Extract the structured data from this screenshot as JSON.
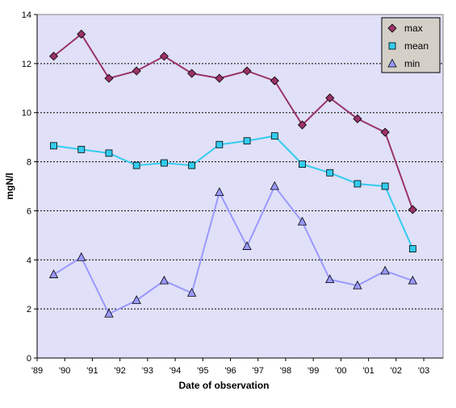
{
  "chart_data": {
    "type": "line",
    "xlabel": "Date of observation",
    "ylabel": "mgN/l",
    "ylim": [
      0,
      14
    ],
    "yticks": [
      0,
      2,
      4,
      6,
      8,
      10,
      12,
      14
    ],
    "xlim": [
      1989,
      2003.7
    ],
    "xtick_labels": [
      "'89",
      "'90",
      "'91",
      "'92",
      "'93",
      "'94",
      "'95",
      "'96",
      "'97",
      "'98",
      "'99",
      "'00",
      "'01",
      "'02",
      "'03"
    ],
    "x": [
      "1989.6",
      "1990.6",
      "1991.6",
      "1992.6",
      "1993.6",
      "1994.6",
      "1995.6",
      "1996.6",
      "1997.6",
      "1998.6",
      "1999.6",
      "2000.6",
      "2001.6",
      "2002.6"
    ],
    "grid": "horizontal dotted",
    "legend_position": "top-right",
    "plot_background": "#e0e0f8",
    "series": [
      {
        "name": "max",
        "marker": "diamond",
        "line_color": "#993366",
        "marker_color": "#993366",
        "values": [
          12.3,
          13.2,
          11.4,
          11.7,
          12.3,
          11.6,
          11.4,
          11.7,
          11.3,
          9.5,
          10.6,
          9.75,
          9.2,
          6.05
        ]
      },
      {
        "name": "mean",
        "marker": "square",
        "line_color": "#33ccee",
        "marker_color": "#33ccee",
        "values": [
          8.65,
          8.5,
          8.35,
          7.85,
          7.95,
          7.85,
          8.7,
          8.85,
          9.05,
          7.9,
          7.55,
          7.1,
          7.0,
          4.45
        ]
      },
      {
        "name": "min",
        "marker": "triangle",
        "line_color": "#9999ff",
        "marker_color": "#9999ff",
        "values": [
          3.4,
          4.1,
          1.8,
          2.35,
          3.15,
          2.65,
          6.75,
          4.55,
          7.0,
          5.55,
          3.2,
          2.95,
          3.55,
          3.15
        ]
      }
    ]
  }
}
